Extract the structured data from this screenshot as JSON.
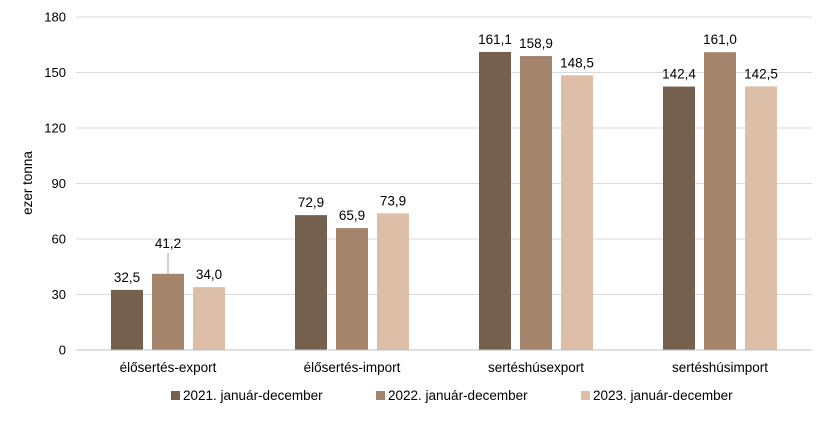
{
  "chart_data": {
    "type": "bar",
    "title": "",
    "xlabel": "",
    "ylabel": "ezer tonna",
    "ylim": [
      0,
      180
    ],
    "yticks": [
      0,
      30,
      60,
      90,
      120,
      150,
      180
    ],
    "grid": "horizontal",
    "legend_position": "bottom",
    "categories": [
      "élősertés-export",
      "élősertés-import",
      "sertéshúsexport",
      "sertéshúsimport"
    ],
    "series": [
      {
        "name": "2021. január-december",
        "color": "#75604D",
        "values": [
          32.5,
          72.9,
          161.1,
          142.4
        ]
      },
      {
        "name": "2022. január-december",
        "color": "#A4856C",
        "values": [
          41.2,
          65.9,
          158.9,
          161.0
        ]
      },
      {
        "name": "2023. január-december",
        "color": "#DDBFA8",
        "values": [
          34.0,
          73.9,
          148.5,
          142.5
        ]
      }
    ],
    "decimal_separator": ","
  }
}
